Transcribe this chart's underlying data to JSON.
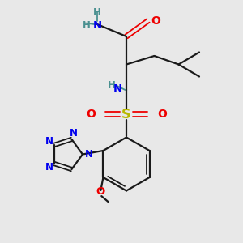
{
  "bg_color": "#e8e8e8",
  "bond_color": "#1a1a1a",
  "N_color": "#0000ee",
  "O_color": "#ee0000",
  "S_color": "#b8b800",
  "H_color": "#4a9090",
  "figsize": [
    3.0,
    3.0
  ],
  "dpi": 100,
  "xlim": [
    0,
    10
  ],
  "ylim": [
    0,
    10
  ]
}
